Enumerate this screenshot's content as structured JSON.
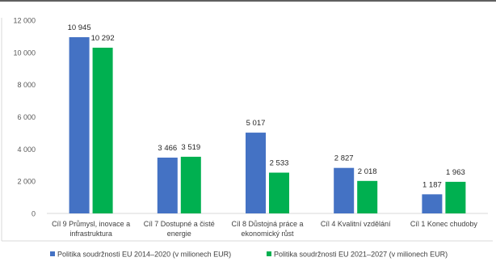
{
  "chart_data": {
    "type": "bar",
    "categories": [
      [
        "Cíl 9 Průmysl, inovace a",
        "infrastruktura"
      ],
      [
        "Cíl 7 Dostupné a čisté",
        "energie"
      ],
      [
        "Cíl 8 Důstojná práce a",
        "ekonomický růst"
      ],
      [
        "Cíl 4 Kvalitní vzdělání"
      ],
      [
        "Cíl 1 Konec chudoby"
      ]
    ],
    "series": [
      {
        "name": "Politika soudržnosti EU 2014–2020 (v milionech EUR)",
        "color": "#4472c4",
        "values": [
          10945,
          3466,
          5017,
          2827,
          1187
        ],
        "labels": [
          "10 945",
          "3 466",
          "5 017",
          "2 827",
          "1 187"
        ]
      },
      {
        "name": "Politika soudržnosti EU 2021–2027 (v milionech EUR)",
        "color": "#00b050",
        "values": [
          10292,
          3519,
          2533,
          2018,
          1963
        ],
        "labels": [
          "10 292",
          "3 519",
          "2 533",
          "2 018",
          "1 963"
        ]
      }
    ],
    "ylim": [
      0,
      12000
    ],
    "yticks": [
      0,
      2000,
      4000,
      6000,
      8000,
      10000,
      12000
    ],
    "ytick_labels": [
      "0",
      "2 000",
      "4 000",
      "6 000",
      "8 000",
      "10 000",
      "12 000"
    ],
    "grid": false,
    "legend_position": "bottom"
  }
}
